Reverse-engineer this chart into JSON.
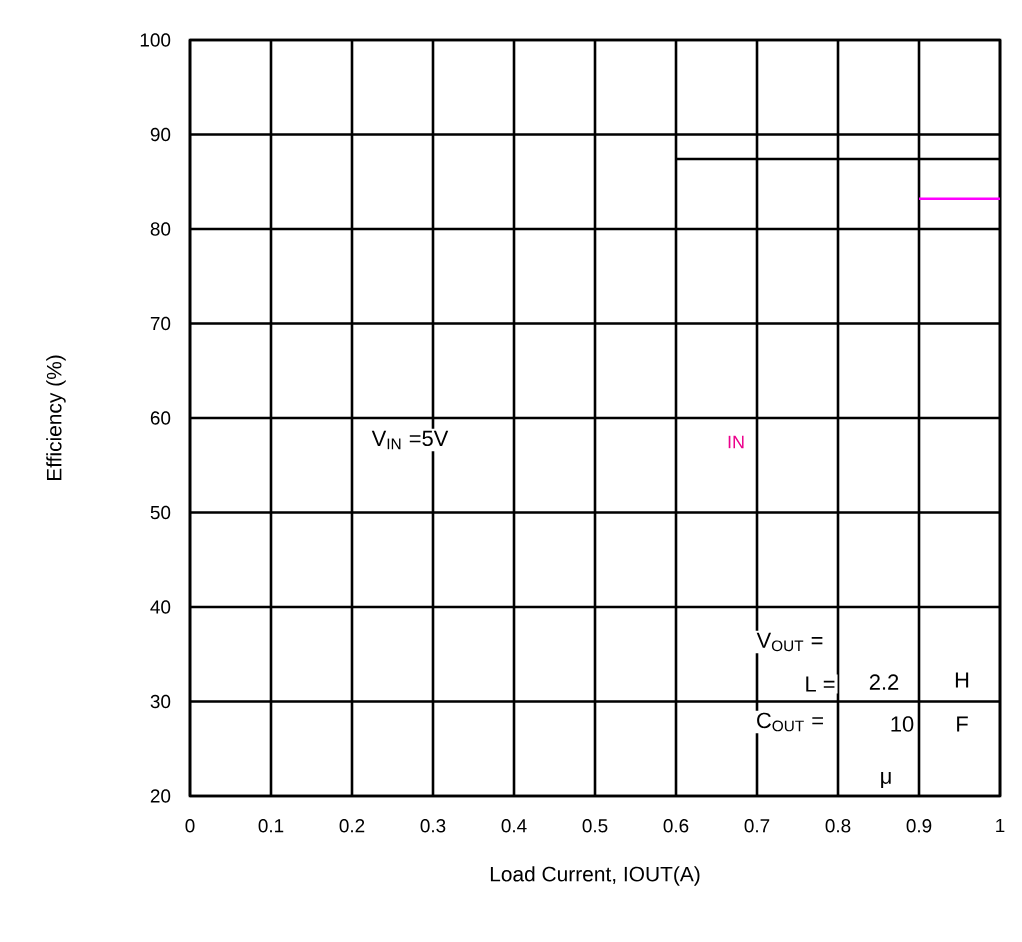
{
  "chart_data": {
    "type": "line",
    "xlabel": "Load Current, IOUT(A)",
    "ylabel": "Efficiency (%)",
    "series": [
      {
        "color": "#000000",
        "x": [
          0.6,
          1.0
        ],
        "values": [
          87.4,
          87.4
        ]
      },
      {
        "color": "#ff00ff",
        "x": [
          0.9,
          1.0
        ],
        "values": [
          83.2,
          83.2
        ]
      }
    ],
    "xlim": [
      0,
      1
    ],
    "xticks": [
      0,
      0.1,
      0.2,
      0.3,
      0.4,
      0.5,
      0.6,
      0.7,
      0.8,
      0.9,
      1
    ],
    "ylim": [
      20,
      100
    ],
    "yticks": [
      20,
      30,
      40,
      50,
      60,
      70,
      80,
      90,
      100
    ],
    "grid": true,
    "marker": "none",
    "line_style": "solid",
    "annotations": [
      "V$_{IN}$ =5V",
      "IN",
      "V$_{OUT}$ =",
      "L =",
      "2.2",
      "H",
      "C$_{OUT}$ =",
      "10",
      "F",
      "μ"
    ]
  }
}
